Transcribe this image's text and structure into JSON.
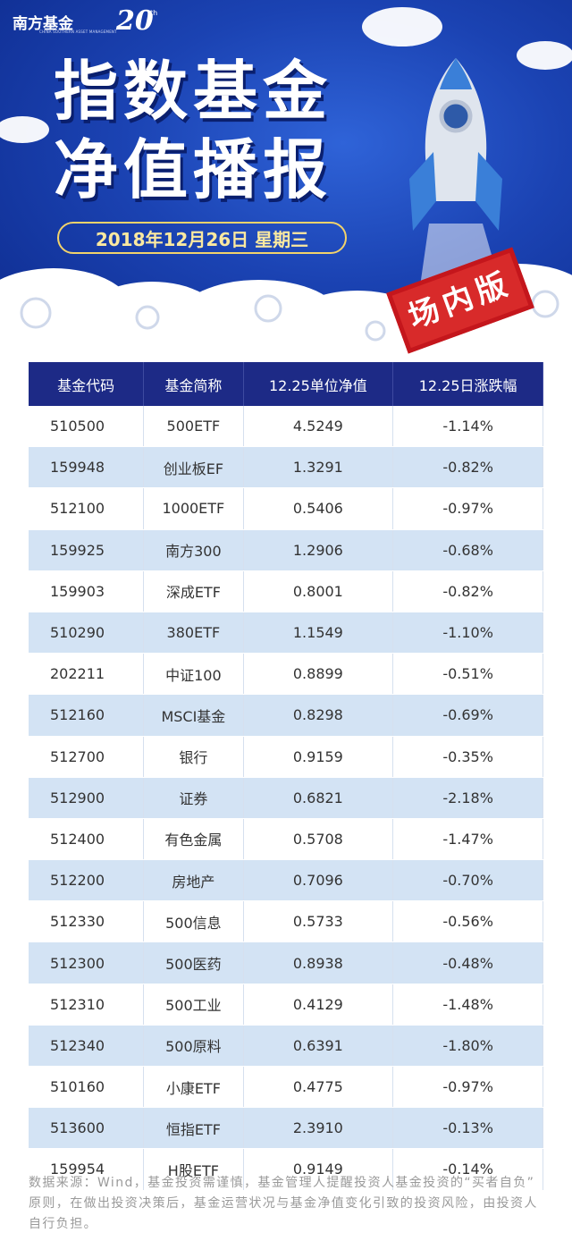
{
  "header": {
    "logo": {
      "name": "南方基金",
      "english": "CHINA SOUTHERN ASSET MANAGEMENT",
      "anniversary": "20",
      "anniversary_suffix": "th"
    },
    "title_line1": "指数基金",
    "title_line2": "净值播报",
    "date": "2018年12月26日 星期三",
    "stamp": "场内版"
  },
  "table": {
    "columns": [
      "基金代码",
      "基金简称",
      "12.25单位净值",
      "12.25日涨跌幅"
    ],
    "rows": [
      [
        "510500",
        "500ETF",
        "4.5249",
        "-1.14%"
      ],
      [
        "159948",
        "创业板EF",
        "1.3291",
        "-0.82%"
      ],
      [
        "512100",
        "1000ETF",
        "0.5406",
        "-0.97%"
      ],
      [
        "159925",
        "南方300",
        "1.2906",
        "-0.68%"
      ],
      [
        "159903",
        "深成ETF",
        "0.8001",
        "-0.82%"
      ],
      [
        "510290",
        "380ETF",
        "1.1549",
        "-1.10%"
      ],
      [
        "202211",
        "中证100",
        "0.8899",
        "-0.51%"
      ],
      [
        "512160",
        "MSCI基金",
        "0.8298",
        "-0.69%"
      ],
      [
        "512700",
        "银行",
        "0.9159",
        "-0.35%"
      ],
      [
        "512900",
        "证券",
        "0.6821",
        "-2.18%"
      ],
      [
        "512400",
        "有色金属",
        "0.5708",
        "-1.47%"
      ],
      [
        "512200",
        "房地产",
        "0.7096",
        "-0.70%"
      ],
      [
        "512330",
        "500信息",
        "0.5733",
        "-0.56%"
      ],
      [
        "512300",
        "500医药",
        "0.8938",
        "-0.48%"
      ],
      [
        "512310",
        "500工业",
        "0.4129",
        "-1.48%"
      ],
      [
        "512340",
        "500原料",
        "0.6391",
        "-1.80%"
      ],
      [
        "510160",
        "小康ETF",
        "0.4775",
        "-0.97%"
      ],
      [
        "513600",
        "恒指ETF",
        "2.3910",
        "-0.13%"
      ],
      [
        "159954",
        "H股ETF",
        "0.9149",
        "-0.14%"
      ]
    ]
  },
  "footer": {
    "note": "数据来源：Wind，基金投资需谨慎，基金管理人提醒投资人基金投资的“买者自负”原则，在做出投资决策后，基金运营状况与基金净值变化引致的投资风险，由投资人自行负担。"
  }
}
